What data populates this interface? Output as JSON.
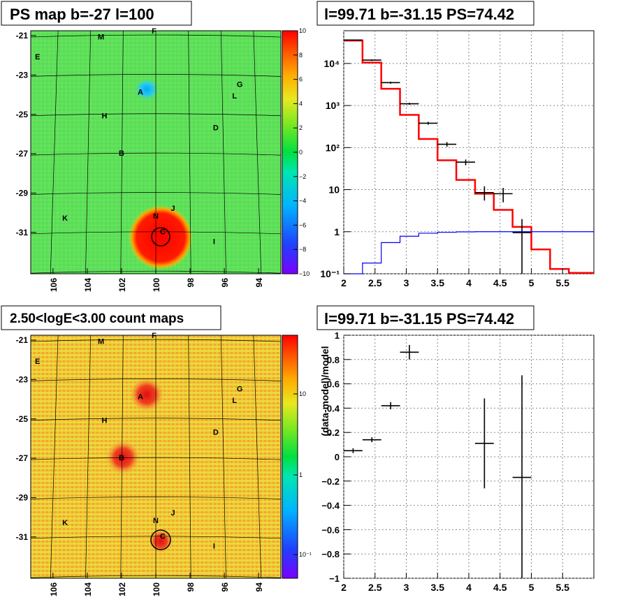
{
  "colors": {
    "map_green": "#5fe05a",
    "count_yellow": "#f4d640",
    "source_red": "#e8241c",
    "model_red": "#ff0000",
    "bkg_blue": "#0000ff",
    "grid": "#000000"
  },
  "panels": {
    "ps_map": {
      "title": "PS map b=-27 l=100"
    },
    "spectrum": {
      "title": "l=99.71 b=-31.15 PS=74.42"
    },
    "count_map": {
      "title": "2.50<logE<3.00 count maps"
    },
    "residual": {
      "title": "l=99.71 b=-31.15 PS=74.42"
    }
  },
  "chart_data": [
    {
      "type": "heatmap",
      "title": "PS map b=-27 l=100",
      "x_ticks": [
        "106",
        "104",
        "102",
        "100",
        "98",
        "96",
        "94"
      ],
      "y_ticks": [
        "-21",
        "-23",
        "-25",
        "-27",
        "-29",
        "-31"
      ],
      "colorbar_ticks": [
        "10",
        "8",
        "6",
        "4",
        "2",
        "0",
        "−2",
        "−4",
        "−6",
        "−8",
        "−10"
      ],
      "zlim": [
        -10,
        10
      ],
      "labels": [
        {
          "t": "F",
          "l": 100.1,
          "b": -20.9
        },
        {
          "t": "M",
          "l": 103.2,
          "b": -21.2
        },
        {
          "t": "E",
          "l": 106.9,
          "b": -22.2
        },
        {
          "t": "A",
          "l": 100.9,
          "b": -24.0
        },
        {
          "t": "G",
          "l": 95.1,
          "b": -23.6
        },
        {
          "t": "L",
          "l": 95.4,
          "b": -24.2
        },
        {
          "t": "H",
          "l": 103.0,
          "b": -25.2
        },
        {
          "t": "D",
          "l": 96.5,
          "b": -25.8
        },
        {
          "t": "B",
          "l": 102.0,
          "b": -27.1
        },
        {
          "t": "K",
          "l": 105.3,
          "b": -30.4
        },
        {
          "t": "N",
          "l": 100.0,
          "b": -30.3
        },
        {
          "t": "J",
          "l": 99.0,
          "b": -29.9
        },
        {
          "t": "C",
          "l": 99.6,
          "b": -31.1
        },
        {
          "t": "I",
          "l": 96.6,
          "b": -31.6
        }
      ],
      "source_marker": {
        "l": 99.71,
        "b": -31.15
      }
    },
    {
      "type": "line",
      "title": "l=99.71 b=-31.15 PS=74.42",
      "xlim": [
        2,
        6
      ],
      "ylim": [
        0.1,
        60000
      ],
      "yscale": "log",
      "x_ticks": [
        "2",
        "2.5",
        "3",
        "3.5",
        "4",
        "4.5",
        "5",
        "5.5"
      ],
      "y_ticks": [
        "10⁻¹",
        "1",
        "10",
        "10²",
        "10³",
        "10⁴"
      ],
      "bin_edges": [
        2.0,
        2.3,
        2.6,
        2.9,
        3.2,
        3.5,
        3.8,
        4.1,
        4.4,
        4.7,
        5.0,
        5.3,
        5.6,
        6.0
      ],
      "series": [
        {
          "style": "model",
          "values": [
            35000,
            10500,
            2500,
            600,
            160,
            50,
            17,
            8,
            3.3,
            1.3,
            0.38,
            0.13,
            0.105
          ]
        },
        {
          "style": "background",
          "values": [
            0.05,
            0.18,
            0.55,
            0.78,
            0.92,
            0.97,
            0.99,
            1.0,
            1.0,
            1.0,
            1.0,
            1.0,
            1.0
          ]
        }
      ],
      "data_points": [
        {
          "x": 2.15,
          "y": 36000,
          "xerr": 0.15,
          "ylo": 35000,
          "yhi": 37000
        },
        {
          "x": 2.45,
          "y": 12000,
          "xerr": 0.15,
          "ylo": 11500,
          "yhi": 12500
        },
        {
          "x": 2.75,
          "y": 3500,
          "xerr": 0.15,
          "ylo": 3300,
          "yhi": 3700
        },
        {
          "x": 3.05,
          "y": 1100,
          "xerr": 0.15,
          "ylo": 1040,
          "yhi": 1160
        },
        {
          "x": 3.35,
          "y": 380,
          "xerr": 0.15,
          "ylo": 350,
          "yhi": 410
        },
        {
          "x": 3.65,
          "y": 120,
          "xerr": 0.15,
          "ylo": 105,
          "yhi": 135
        },
        {
          "x": 3.95,
          "y": 45,
          "xerr": 0.15,
          "ylo": 38,
          "yhi": 52
        },
        {
          "x": 4.25,
          "y": 8.5,
          "xerr": 0.15,
          "ylo": 5.5,
          "yhi": 12
        },
        {
          "x": 4.55,
          "y": 8.0,
          "xerr": 0.15,
          "ylo": 5.0,
          "yhi": 11
        },
        {
          "x": 4.85,
          "y": 0.95,
          "xerr": 0.15,
          "ylo": 0.05,
          "yhi": 2.0
        }
      ]
    },
    {
      "type": "heatmap",
      "title": "2.50<logE<3.00 count maps",
      "x_ticks": [
        "106",
        "104",
        "102",
        "100",
        "98",
        "96",
        "94"
      ],
      "y_ticks": [
        "-21",
        "-23",
        "-25",
        "-27",
        "-29",
        "-31"
      ],
      "colorbar_ticks": [
        "10",
        "1",
        "10⁻¹"
      ],
      "zscale": "log",
      "labels": [
        {
          "t": "F",
          "l": 100.1,
          "b": -20.9
        },
        {
          "t": "M",
          "l": 103.2,
          "b": -21.2
        },
        {
          "t": "E",
          "l": 106.9,
          "b": -22.2
        },
        {
          "t": "A",
          "l": 100.9,
          "b": -24.0
        },
        {
          "t": "G",
          "l": 95.1,
          "b": -23.6
        },
        {
          "t": "L",
          "l": 95.4,
          "b": -24.2
        },
        {
          "t": "H",
          "l": 103.0,
          "b": -25.2
        },
        {
          "t": "D",
          "l": 96.5,
          "b": -25.8
        },
        {
          "t": "B",
          "l": 102.0,
          "b": -27.1
        },
        {
          "t": "K",
          "l": 105.3,
          "b": -30.4
        },
        {
          "t": "N",
          "l": 100.0,
          "b": -30.3
        },
        {
          "t": "J",
          "l": 99.0,
          "b": -29.9
        },
        {
          "t": "C",
          "l": 99.6,
          "b": -31.1
        },
        {
          "t": "I",
          "l": 96.6,
          "b": -31.6
        }
      ],
      "source_marker": {
        "l": 99.71,
        "b": -31.15
      }
    },
    {
      "type": "scatter",
      "title": "l=99.71 b=-31.15 PS=74.42",
      "ylabel": "(data-model)/model",
      "xlim": [
        2,
        6
      ],
      "ylim": [
        -1,
        1
      ],
      "x_ticks": [
        "2",
        "2.5",
        "3",
        "3.5",
        "4",
        "4.5",
        "5",
        "5.5"
      ],
      "y_ticks": [
        "−1",
        "−0.8",
        "−0.6",
        "−0.4",
        "−0.2",
        "0",
        "0.2",
        "0.4",
        "0.6",
        "0.8",
        "1"
      ],
      "data_points": [
        {
          "x": 2.15,
          "y": 0.05,
          "xerr": 0.15,
          "ylo": 0.03,
          "yhi": 0.07
        },
        {
          "x": 2.45,
          "y": 0.14,
          "xerr": 0.15,
          "ylo": 0.12,
          "yhi": 0.16
        },
        {
          "x": 2.75,
          "y": 0.42,
          "xerr": 0.15,
          "ylo": 0.39,
          "yhi": 0.45
        },
        {
          "x": 3.05,
          "y": 0.86,
          "xerr": 0.15,
          "ylo": 0.8,
          "yhi": 0.92
        },
        {
          "x": 4.25,
          "y": 0.11,
          "xerr": 0.15,
          "ylo": -0.26,
          "yhi": 0.48
        },
        {
          "x": 4.85,
          "y": -0.17,
          "xerr": 0.15,
          "ylo": -1.0,
          "yhi": 0.67
        }
      ]
    }
  ]
}
